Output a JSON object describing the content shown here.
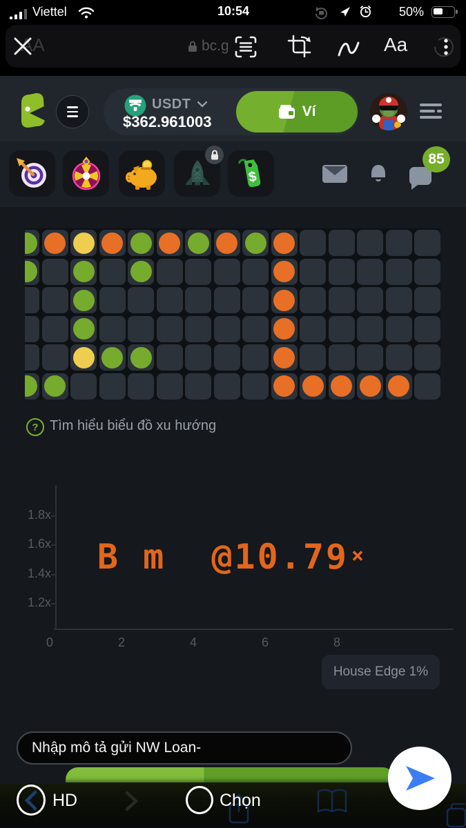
{
  "colors": {
    "accent_green": "#76b32d",
    "wallet_green_light": "#74b02e",
    "wallet_green_dark": "#5d9d25",
    "dot_green": "#76ab2e",
    "dot_orange": "#e86f26",
    "dot_yellow": "#eecd50",
    "crash_orange": "#e2661b",
    "badge_green": "#76ae2b",
    "send_blue": "#3b7ef2",
    "tether_teal": "#26a17b"
  },
  "status_bar": {
    "carrier": "Viettel",
    "time": "10:54",
    "battery_percent": "50%"
  },
  "browser_toolbar": {
    "url": "bc.game",
    "faint_text": "AA",
    "aa_label": "Aa"
  },
  "header": {
    "currency": "USDT",
    "balance": "$362.961003",
    "wallet_button_label": "Ví",
    "notification_badge": "85"
  },
  "promo_row": {
    "tiles": [
      {
        "name": "dart-target"
      },
      {
        "name": "lucky-wheel"
      },
      {
        "name": "piggy-bank"
      },
      {
        "name": "rocket",
        "locked": true
      },
      {
        "name": "price-tag"
      }
    ]
  },
  "trend": {
    "help_label": "Tìm hiểu biểu đồ xu hướng",
    "legend": {
      "g": "green",
      "o": "orange",
      "y": "yellow",
      ".": "empty"
    },
    "rows": [
      "goyogogogo.....",
      "g.g.g....o.....",
      "..g......o.....",
      "..g......o.....",
      "..ygg....o.....",
      "gg.......ooooo."
    ]
  },
  "chart_data": {
    "type": "line",
    "x_ticks": [
      "0",
      "2",
      "4",
      "6",
      "8"
    ],
    "y_ticks_top_to_bottom": [
      "1.8x",
      "1.6x",
      "1.4x",
      "1.2x"
    ],
    "series": [],
    "annotation": "B m  @10.79×",
    "crash_multiplier": 10.79,
    "note": "House Edge 1%"
  },
  "crash": {
    "message": "B m  @10.79",
    "multiplier_mark": "×",
    "house_edge_label": "House Edge 1%"
  },
  "composer": {
    "placeholder": "Nhập mô tả gửi NW Loan-"
  },
  "bottom_bar": {
    "left_label": "HD",
    "center_label": "Chọn"
  }
}
